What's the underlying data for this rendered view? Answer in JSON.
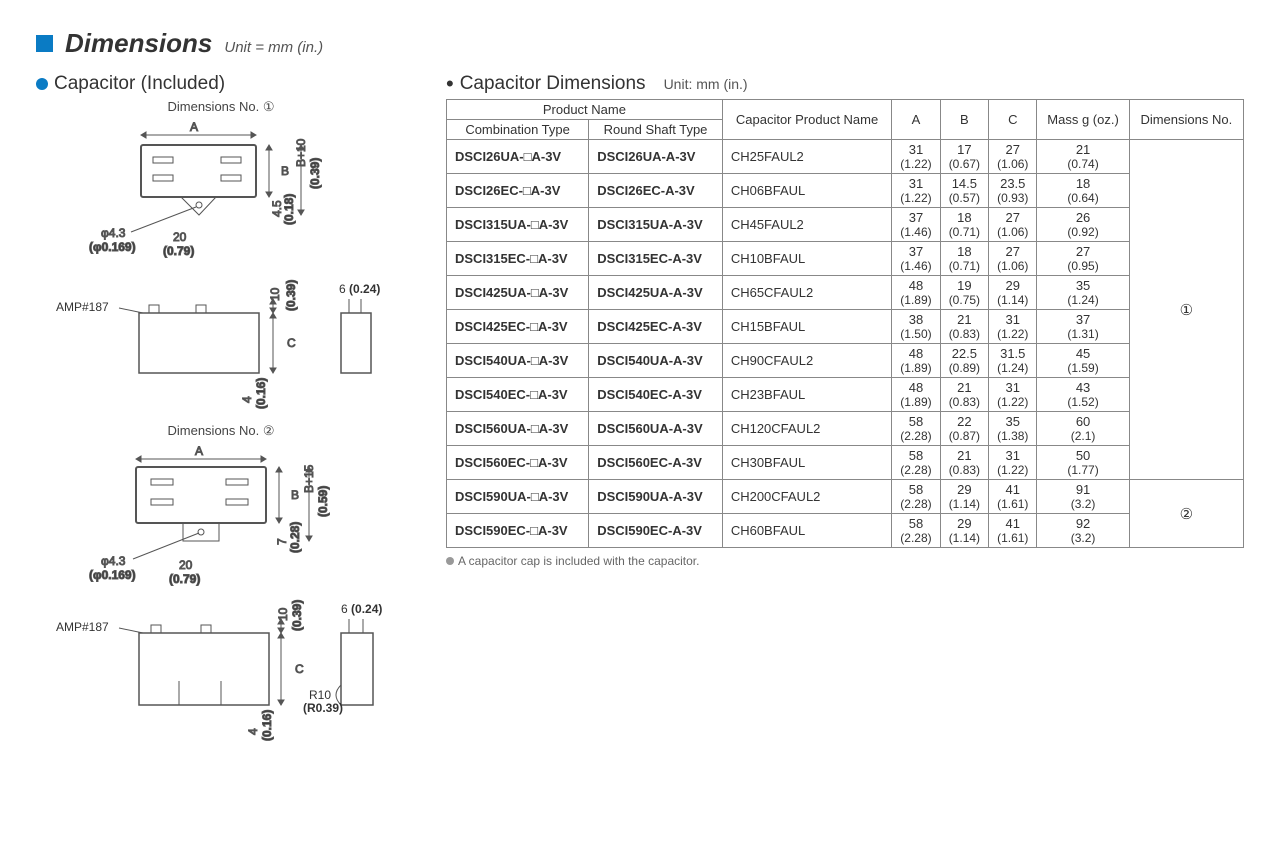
{
  "header": {
    "title": "Dimensions",
    "unit": "Unit = mm (in.)"
  },
  "left": {
    "heading": "Capacitor (Included)",
    "dim_no1": "Dimensions No. ①",
    "dim_no2": "Dimensions No. ②",
    "labels": {
      "A": "A",
      "B": "B",
      "C": "C",
      "phi": "φ4.3",
      "phi_in": "(φ0.169)",
      "d20": "20",
      "d20_in": "(0.79)",
      "d45": "4.5",
      "d45_in": "(0.18)",
      "bp10": "B+10",
      "bp10_in": "(0.39)",
      "bp15": "B+15",
      "bp15_in": "(0.59)",
      "d7": "7",
      "d7_in": "(0.28)",
      "amp": "AMP#187",
      "d10": "10",
      "d10_in": "(0.39)",
      "d6": "6",
      "d6_in": "(0.24)",
      "d4": "4",
      "d4_in": "(0.16)",
      "r10": "R10",
      "r10_in": "(R0.39)"
    }
  },
  "right": {
    "heading": "Capacitor Dimensions",
    "unit": "Unit: mm (in.)",
    "headers": {
      "productName": "Product Name",
      "combo": "Combination Type",
      "round": "Round Shaft Type",
      "capName": "Capacitor Product Name",
      "A": "A",
      "B": "B",
      "C": "C",
      "mass": "Mass g (oz.)",
      "dimNo": "Dimensions No."
    },
    "rows": [
      {
        "combo": "DSCI26UA-□A-3V",
        "round": "DSCI26UA-A-3V",
        "cap": "CH25FAUL2",
        "A": [
          "31",
          "(1.22)"
        ],
        "B": [
          "17",
          "(0.67)"
        ],
        "C": [
          "27",
          "(1.06)"
        ],
        "M": [
          "21",
          "(0.74)"
        ]
      },
      {
        "combo": "DSCI26EC-□A-3V",
        "round": "DSCI26EC-A-3V",
        "cap": "CH06BFAUL",
        "A": [
          "31",
          "(1.22)"
        ],
        "B": [
          "14.5",
          "(0.57)"
        ],
        "C": [
          "23.5",
          "(0.93)"
        ],
        "M": [
          "18",
          "(0.64)"
        ]
      },
      {
        "combo": "DSCI315UA-□A-3V",
        "round": "DSCI315UA-A-3V",
        "cap": "CH45FAUL2",
        "A": [
          "37",
          "(1.46)"
        ],
        "B": [
          "18",
          "(0.71)"
        ],
        "C": [
          "27",
          "(1.06)"
        ],
        "M": [
          "26",
          "(0.92)"
        ]
      },
      {
        "combo": "DSCI315EC-□A-3V",
        "round": "DSCI315EC-A-3V",
        "cap": "CH10BFAUL",
        "A": [
          "37",
          "(1.46)"
        ],
        "B": [
          "18",
          "(0.71)"
        ],
        "C": [
          "27",
          "(1.06)"
        ],
        "M": [
          "27",
          "(0.95)"
        ]
      },
      {
        "combo": "DSCI425UA-□A-3V",
        "round": "DSCI425UA-A-3V",
        "cap": "CH65CFAUL2",
        "A": [
          "48",
          "(1.89)"
        ],
        "B": [
          "19",
          "(0.75)"
        ],
        "C": [
          "29",
          "(1.14)"
        ],
        "M": [
          "35",
          "(1.24)"
        ]
      },
      {
        "combo": "DSCI425EC-□A-3V",
        "round": "DSCI425EC-A-3V",
        "cap": "CH15BFAUL",
        "A": [
          "38",
          "(1.50)"
        ],
        "B": [
          "21",
          "(0.83)"
        ],
        "C": [
          "31",
          "(1.22)"
        ],
        "M": [
          "37",
          "(1.31)"
        ]
      },
      {
        "combo": "DSCI540UA-□A-3V",
        "round": "DSCI540UA-A-3V",
        "cap": "CH90CFAUL2",
        "A": [
          "48",
          "(1.89)"
        ],
        "B": [
          "22.5",
          "(0.89)"
        ],
        "C": [
          "31.5",
          "(1.24)"
        ],
        "M": [
          "45",
          "(1.59)"
        ]
      },
      {
        "combo": "DSCI540EC-□A-3V",
        "round": "DSCI540EC-A-3V",
        "cap": "CH23BFAUL",
        "A": [
          "48",
          "(1.89)"
        ],
        "B": [
          "21",
          "(0.83)"
        ],
        "C": [
          "31",
          "(1.22)"
        ],
        "M": [
          "43",
          "(1.52)"
        ]
      },
      {
        "combo": "DSCI560UA-□A-3V",
        "round": "DSCI560UA-A-3V",
        "cap": "CH120CFAUL2",
        "A": [
          "58",
          "(2.28)"
        ],
        "B": [
          "22",
          "(0.87)"
        ],
        "C": [
          "35",
          "(1.38)"
        ],
        "M": [
          "60",
          "(2.1)"
        ]
      },
      {
        "combo": "DSCI560EC-□A-3V",
        "round": "DSCI560EC-A-3V",
        "cap": "CH30BFAUL",
        "A": [
          "58",
          "(2.28)"
        ],
        "B": [
          "21",
          "(0.83)"
        ],
        "C": [
          "31",
          "(1.22)"
        ],
        "M": [
          "50",
          "(1.77)"
        ]
      },
      {
        "combo": "DSCI590UA-□A-3V",
        "round": "DSCI590UA-A-3V",
        "cap": "CH200CFAUL2",
        "A": [
          "58",
          "(2.28)"
        ],
        "B": [
          "29",
          "(1.14)"
        ],
        "C": [
          "41",
          "(1.61)"
        ],
        "M": [
          "91",
          "(3.2)"
        ]
      },
      {
        "combo": "DSCI590EC-□A-3V",
        "round": "DSCI590EC-A-3V",
        "cap": "CH60BFAUL",
        "A": [
          "58",
          "(2.28)"
        ],
        "B": [
          "29",
          "(1.14)"
        ],
        "C": [
          "41",
          "(1.61)"
        ],
        "M": [
          "92",
          "(3.2)"
        ]
      }
    ],
    "dimno_groups": [
      {
        "label": "①",
        "span": 10
      },
      {
        "label": "②",
        "span": 2
      }
    ],
    "footnote": "A capacitor cap is included with the capacitor."
  },
  "style": {
    "accent": "#0a7bc4",
    "border": "#888",
    "line": "#555"
  }
}
